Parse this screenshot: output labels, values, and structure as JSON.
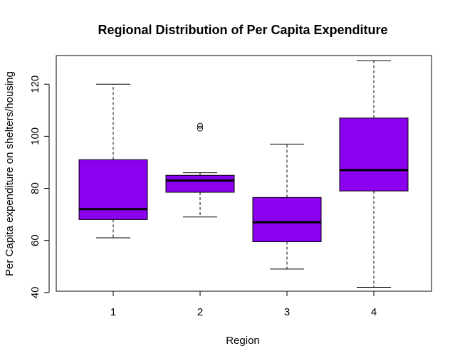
{
  "chart_data": {
    "type": "boxplot",
    "title": "Regional Distribution of Per Capita Expenditure",
    "xlabel": "Region",
    "ylabel": "Per Capita expenditure on shelters/housing",
    "categories": [
      "1",
      "2",
      "3",
      "4"
    ],
    "ylim": [
      40.5,
      131
    ],
    "yticks": [
      40,
      60,
      80,
      100,
      120
    ],
    "ytick_labels": [
      "40",
      "60",
      "80",
      "100",
      "120"
    ],
    "box_color": "#8B00EE",
    "boxes": [
      {
        "category": "1",
        "whisker_low": 61,
        "q1": 68,
        "median": 72,
        "q3": 91,
        "whisker_high": 120,
        "outliers": []
      },
      {
        "category": "2",
        "whisker_low": 69,
        "q1": 78.5,
        "median": 83,
        "q3": 85,
        "whisker_high": 86,
        "outliers": [
          103.5,
          103.5
        ]
      },
      {
        "category": "3",
        "whisker_low": 49,
        "q1": 59.5,
        "median": 67,
        "q3": 76.5,
        "whisker_high": 97,
        "outliers": []
      },
      {
        "category": "4",
        "whisker_low": 42,
        "q1": 79,
        "median": 87,
        "q3": 107,
        "whisker_high": 129,
        "outliers": []
      }
    ]
  }
}
